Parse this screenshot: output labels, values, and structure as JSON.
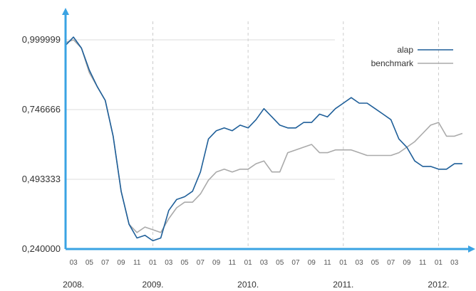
{
  "chart_data": {
    "type": "line",
    "title": "",
    "xlabel": "",
    "ylabel": "",
    "ylim": [
      0.24,
      1.0
    ],
    "grid": true,
    "legend_position": "top-right",
    "y_tick_labels": [
      "0,999999",
      "0,746666",
      "0,493333",
      "0,240000"
    ],
    "x_month_labels": [
      "03",
      "05",
      "07",
      "09",
      "11",
      "01",
      "03",
      "05",
      "07",
      "09",
      "11",
      "01",
      "03",
      "05",
      "07",
      "09",
      "11",
      "01",
      "03",
      "05",
      "07",
      "09",
      "11",
      "01",
      "03"
    ],
    "x_year_labels": [
      "2008.",
      "2009.",
      "2010.",
      "2011.",
      "2012."
    ],
    "series": [
      {
        "name": "alap",
        "color": "#1f5f99",
        "x": [
          "2008-02",
          "2008-03",
          "2008-04",
          "2008-05",
          "2008-06",
          "2008-07",
          "2008-08",
          "2008-09",
          "2008-10",
          "2008-11",
          "2008-12",
          "2009-01",
          "2009-02",
          "2009-03",
          "2009-04",
          "2009-05",
          "2009-06",
          "2009-07",
          "2009-08",
          "2009-09",
          "2009-10",
          "2009-11",
          "2009-12",
          "2010-01",
          "2010-02",
          "2010-03",
          "2010-04",
          "2010-05",
          "2010-06",
          "2010-07",
          "2010-08",
          "2010-09",
          "2010-10",
          "2010-11",
          "2010-12",
          "2011-01",
          "2011-02",
          "2011-03",
          "2011-04",
          "2011-05",
          "2011-06",
          "2011-07",
          "2011-08",
          "2011-09",
          "2011-10",
          "2011-11",
          "2011-12",
          "2012-01",
          "2012-02",
          "2012-03",
          "2012-04"
        ],
        "values": [
          0.98,
          1.01,
          0.97,
          0.89,
          0.83,
          0.78,
          0.65,
          0.45,
          0.33,
          0.28,
          0.29,
          0.27,
          0.28,
          0.38,
          0.42,
          0.43,
          0.45,
          0.52,
          0.64,
          0.67,
          0.68,
          0.67,
          0.69,
          0.68,
          0.71,
          0.75,
          0.72,
          0.69,
          0.68,
          0.68,
          0.7,
          0.7,
          0.73,
          0.72,
          0.75,
          0.77,
          0.79,
          0.77,
          0.77,
          0.75,
          0.73,
          0.71,
          0.64,
          0.61,
          0.56,
          0.54,
          0.54,
          0.53,
          0.53,
          0.55,
          0.55
        ]
      },
      {
        "name": "benchmark",
        "color": "#aaaaaa",
        "x": [
          "2008-02",
          "2008-03",
          "2008-04",
          "2008-05",
          "2008-06",
          "2008-07",
          "2008-08",
          "2008-09",
          "2008-10",
          "2008-11",
          "2008-12",
          "2009-01",
          "2009-02",
          "2009-03",
          "2009-04",
          "2009-05",
          "2009-06",
          "2009-07",
          "2009-08",
          "2009-09",
          "2009-10",
          "2009-11",
          "2009-12",
          "2010-01",
          "2010-02",
          "2010-03",
          "2010-04",
          "2010-05",
          "2010-06",
          "2010-07",
          "2010-08",
          "2010-09",
          "2010-10",
          "2010-11",
          "2010-12",
          "2011-01",
          "2011-02",
          "2011-03",
          "2011-04",
          "2011-05",
          "2011-06",
          "2011-07",
          "2011-08",
          "2011-09",
          "2011-10",
          "2011-11",
          "2011-12",
          "2012-01",
          "2012-02",
          "2012-03",
          "2012-04"
        ],
        "values": [
          0.99,
          1.0,
          0.97,
          0.88,
          0.83,
          0.78,
          0.65,
          0.45,
          0.33,
          0.3,
          0.32,
          0.31,
          0.3,
          0.35,
          0.39,
          0.41,
          0.41,
          0.44,
          0.49,
          0.52,
          0.53,
          0.52,
          0.53,
          0.53,
          0.55,
          0.56,
          0.52,
          0.52,
          0.59,
          0.6,
          0.61,
          0.62,
          0.59,
          0.59,
          0.6,
          0.6,
          0.6,
          0.59,
          0.58,
          0.58,
          0.58,
          0.58,
          0.59,
          0.61,
          0.63,
          0.66,
          0.69,
          0.7,
          0.65,
          0.65,
          0.66
        ]
      }
    ]
  }
}
